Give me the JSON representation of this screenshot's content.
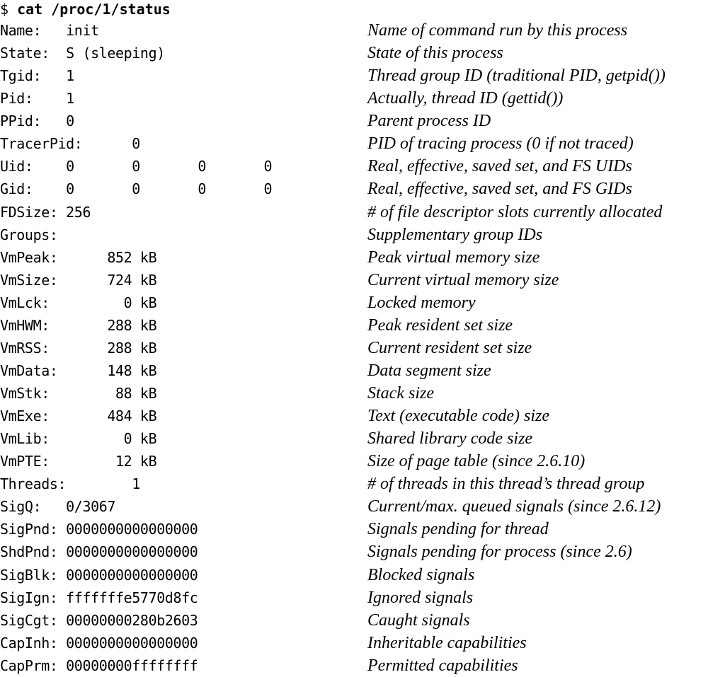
{
  "command": {
    "prompt": "$",
    "text": "cat /proc/1/status"
  },
  "rows": [
    {
      "field": "Name:",
      "value": "init",
      "description": "Name of command run by this process"
    },
    {
      "field": "State:",
      "value": "S (sleeping)",
      "description": "State of this process"
    },
    {
      "field": "Tgid:",
      "value": "1",
      "description": "Thread group ID (traditional PID, getpid())"
    },
    {
      "field": "Pid:",
      "value": "1",
      "description": "Actually, thread ID (gettid())"
    },
    {
      "field": "PPid:",
      "value": "0",
      "description": "Parent process ID"
    },
    {
      "field": "TracerPid:",
      "value": "0",
      "description": "PID of tracing process (0 if not traced)"
    },
    {
      "field": "Uid:",
      "value": "0       0       0       0",
      "description": "Real, effective, saved set, and FS UIDs"
    },
    {
      "field": "Gid:",
      "value": "0       0       0       0",
      "description": "Real, effective, saved set, and FS GIDs"
    },
    {
      "field": "FDSize:",
      "value": "256",
      "description": "# of file descriptor slots currently allocated"
    },
    {
      "field": "Groups:",
      "value": "",
      "description": "Supplementary group IDs"
    },
    {
      "field": "VmPeak:",
      "value": "852 kB",
      "description": "Peak virtual memory size"
    },
    {
      "field": "VmSize:",
      "value": "724 kB",
      "description": "Current virtual memory size"
    },
    {
      "field": "VmLck:",
      "value": "0 kB",
      "description": "Locked memory"
    },
    {
      "field": "VmHWM:",
      "value": "288 kB",
      "description": "Peak resident set size"
    },
    {
      "field": "VmRSS:",
      "value": "288 kB",
      "description": "Current resident set size"
    },
    {
      "field": "VmData:",
      "value": "148 kB",
      "description": "Data segment size"
    },
    {
      "field": "VmStk:",
      "value": "88 kB",
      "description": "Stack size"
    },
    {
      "field": "VmExe:",
      "value": "484 kB",
      "description": "Text (executable code) size"
    },
    {
      "field": "VmLib:",
      "value": "0 kB",
      "description": "Shared library code size"
    },
    {
      "field": "VmPTE:",
      "value": "12 kB",
      "description": "Size of page table (since 2.6.10)"
    },
    {
      "field": "Threads:",
      "value": "1",
      "description": "# of threads in this thread’s thread group"
    },
    {
      "field": "SigQ:",
      "value": "0/3067",
      "description": "Current/max. queued signals (since 2.6.12)"
    },
    {
      "field": "SigPnd:",
      "value": "0000000000000000",
      "description": "Signals pending for thread"
    },
    {
      "field": "ShdPnd:",
      "value": "0000000000000000",
      "description": "Signals pending for process (since 2.6)"
    },
    {
      "field": "SigBlk:",
      "value": "0000000000000000",
      "description": "Blocked signals"
    },
    {
      "field": "SigIgn:",
      "value": "fffffffe5770d8fc",
      "description": "Ignored signals"
    },
    {
      "field": "SigCgt:",
      "value": "00000000280b2603",
      "description": "Caught signals"
    },
    {
      "field": "CapInh:",
      "value": "0000000000000000",
      "description": "Inheritable capabilities"
    },
    {
      "field": "CapPrm:",
      "value": "00000000ffffffff",
      "description": "Permitted capabilities"
    }
  ]
}
